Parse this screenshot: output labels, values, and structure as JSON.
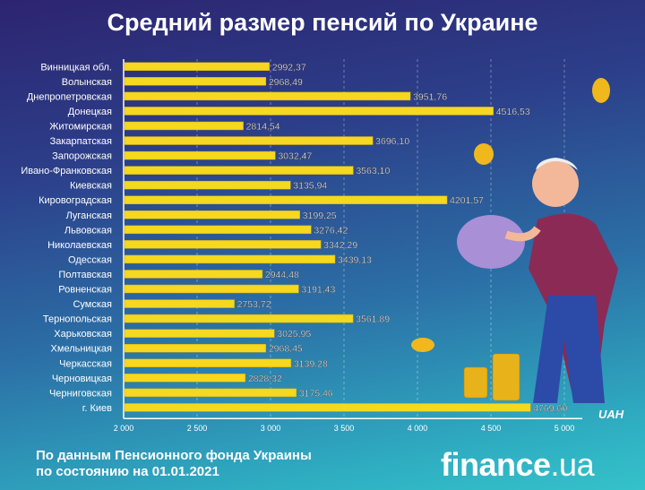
{
  "title": "Средний размер пенсий по Украине",
  "chart_data": {
    "type": "bar",
    "orientation": "horizontal",
    "title": "Средний размер пенсий по Украине",
    "unit": "UAH",
    "categories": [
      "Винницкая обл.",
      "Волынская",
      "Днепропетровская",
      "Донецкая",
      "Житомирская",
      "Закарпатская",
      "Запорожская",
      "Ивано-Франковская",
      "Киевская",
      "Кировоградская",
      "Луганская",
      "Львовская",
      "Николаевская",
      "Одесская",
      "Полтавская",
      "Ровненская",
      "Сумская",
      "Тернопольская",
      "Харьковская",
      "Хмельницкая",
      "Черкасская",
      "Черновицкая",
      "Черниговская",
      "г. Киев"
    ],
    "values": [
      2992.37,
      2968.49,
      3951.76,
      4516.53,
      2814.54,
      3696.1,
      3032.47,
      3563.1,
      3135.94,
      4201.57,
      3199.25,
      3276.42,
      3342.29,
      3439.13,
      2944.48,
      3191.43,
      2753.72,
      3561.89,
      3025.95,
      2968.45,
      3139.28,
      2828.32,
      3175.46,
      4769.6
    ],
    "labels": [
      "2992,37",
      "2968,49",
      "3951,76",
      "4516,53",
      "2814,54",
      "3696,10",
      "3032,47",
      "3563,10",
      "3135,94",
      "4201,57",
      "3199,25",
      "3276,42",
      "3342,29",
      "3439,13",
      "2944,48",
      "3191,43",
      "2753,72",
      "3561,89",
      "3025,95",
      "2968,45",
      "3139,28",
      "2828,32",
      "3175,46",
      "4769,60"
    ],
    "xlim": [
      2000,
      5000
    ],
    "xticks": [
      2000,
      2500,
      3000,
      3500,
      4000,
      4500,
      5000
    ],
    "xtick_labels": [
      "2 000",
      "2 500",
      "3 000",
      "3 500",
      "4 000",
      "4 500",
      "5 000"
    ],
    "grid": true,
    "bar_color": "#f5d81f"
  },
  "footer": {
    "line1": "По данным Пенсионного фонда Украины",
    "line2": "по состоянию на 01.01.2021"
  },
  "logo": {
    "main": "finance",
    "suffix": ".ua"
  }
}
